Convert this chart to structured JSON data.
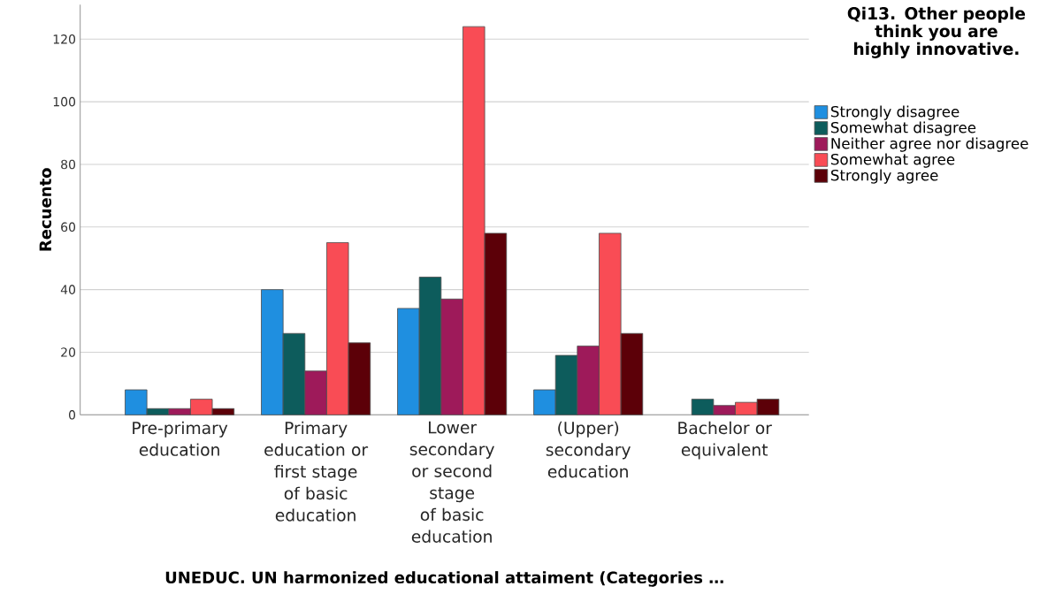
{
  "chart_data": {
    "type": "bar",
    "xlabel": "UNEDUC. UN harmonized educational attaiment (Categories …",
    "ylabel": "Recuento",
    "legend_title": "Qi13.  Other people think you are highly innovative.",
    "categories": [
      "Pre-primary education",
      "Primary education or first stage of basic education",
      "Lower secondary or second stage of basic education",
      "(Upper) secondary education",
      "Bachelor or equivalent"
    ],
    "series": [
      {
        "name": "Strongly disagree",
        "color": "#1f8fe0",
        "values": [
          8,
          40,
          34,
          8,
          null
        ]
      },
      {
        "name": "Somewhat disagree",
        "color": "#0d5c5c",
        "values": [
          2,
          26,
          44,
          19,
          5
        ]
      },
      {
        "name": "Neither agree nor disagree",
        "color": "#9e1a5a",
        "values": [
          2,
          14,
          37,
          22,
          3
        ]
      },
      {
        "name": "Somewhat agree",
        "color": "#f94c55",
        "values": [
          5,
          55,
          124,
          58,
          4
        ]
      },
      {
        "name": "Strongly agree",
        "color": "#5c0008",
        "values": [
          2,
          23,
          58,
          26,
          5
        ]
      }
    ],
    "ylim": [
      0,
      131
    ],
    "yticks": [
      0,
      20,
      40,
      60,
      80,
      100,
      120
    ],
    "grid": "y",
    "legend": "right"
  }
}
